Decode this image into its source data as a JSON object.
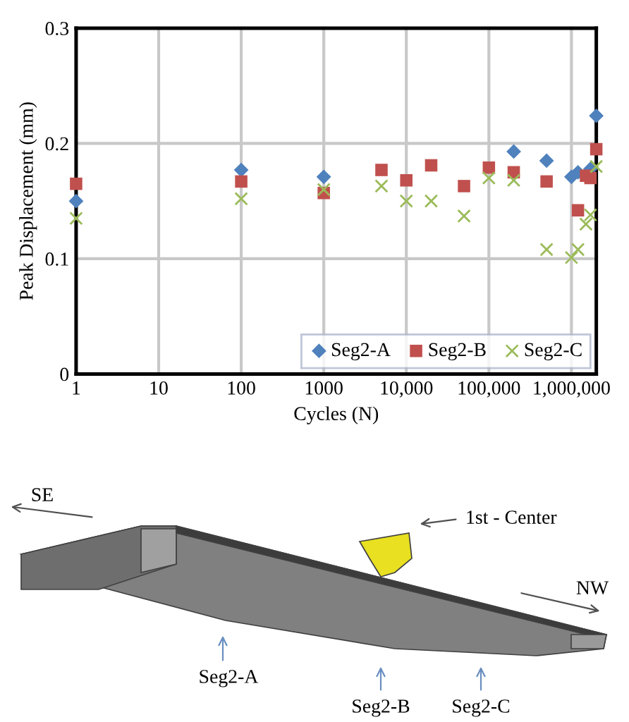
{
  "chart_data": {
    "type": "scatter",
    "xlabel": "Cycles (N)",
    "ylabel": "Peak Displacement (mm)",
    "log": "x",
    "x": [
      1,
      100,
      1000,
      5000,
      10000,
      20000,
      50000,
      100000,
      200000,
      500000,
      1000000,
      1200000,
      1500000,
      1700000,
      2000000
    ],
    "series": [
      {
        "name": "Seg2-A",
        "color": "#4f81bd",
        "marker": "diamond",
        "values": [
          0.15,
          0.177,
          0.171,
          null,
          null,
          null,
          null,
          null,
          0.193,
          0.185,
          0.171,
          0.175,
          null,
          0.178,
          0.224
        ]
      },
      {
        "name": "Seg2-B",
        "color": "#c0504d",
        "marker": "square",
        "values": [
          0.165,
          0.167,
          0.157,
          0.177,
          0.168,
          0.181,
          0.163,
          0.179,
          0.175,
          0.167,
          null,
          0.142,
          0.172,
          0.17,
          0.195
        ]
      },
      {
        "name": "Seg2-C",
        "color": "#9bbb59",
        "marker": "cross",
        "values": [
          0.135,
          0.152,
          0.16,
          0.163,
          0.15,
          0.15,
          0.137,
          0.17,
          0.168,
          0.108,
          0.101,
          0.108,
          0.13,
          0.138,
          0.18
        ]
      }
    ],
    "xlim": [
      1,
      2000000
    ],
    "ylim": [
      0,
      0.3
    ],
    "xticks": [
      1,
      10,
      100,
      1000,
      {
        "value": 10000,
        "label": "10,000"
      },
      {
        "value": 100000,
        "label": "100,000"
      },
      {
        "value": 1000000,
        "label": "1,000,000"
      }
    ],
    "yticks": [
      0,
      0.1,
      0.2,
      0.3
    ],
    "grid": true,
    "legend": "bottom right",
    "annotations": [
      "SE",
      "1st - Center",
      "NW",
      "Seg2-A",
      "Seg2-B",
      "Seg2-C"
    ]
  }
}
